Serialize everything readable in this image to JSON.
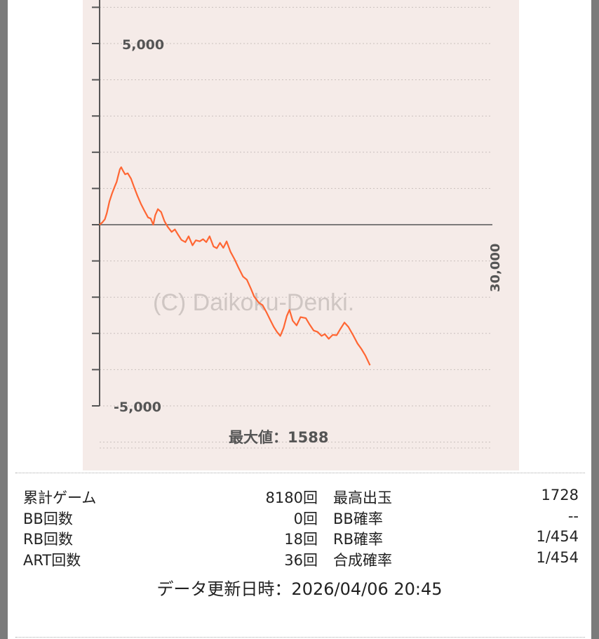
{
  "chart_data": {
    "type": "line",
    "y_tick_labels": [
      "5,000",
      "-5,000"
    ],
    "x_tick_label": "30,000",
    "watermark": "(C) Daikoku-Denki.",
    "max_label": "最大値：1588",
    "ylim": [
      -5000,
      6300
    ],
    "xlim": [
      0,
      30000
    ],
    "colors": {
      "line": "#ff6633",
      "background": "#f5ebe8",
      "axis": "#555555"
    },
    "series": [
      {
        "points": [
          [
            0,
            0
          ],
          [
            200,
            60
          ],
          [
            400,
            150
          ],
          [
            550,
            320
          ],
          [
            750,
            640
          ],
          [
            950,
            860
          ],
          [
            1150,
            1050
          ],
          [
            1300,
            1180
          ],
          [
            1420,
            1350
          ],
          [
            1550,
            1530
          ],
          [
            1650,
            1588
          ],
          [
            1800,
            1480
          ],
          [
            1950,
            1390
          ],
          [
            2150,
            1420
          ],
          [
            2400,
            1270
          ],
          [
            2650,
            1020
          ],
          [
            2900,
            790
          ],
          [
            3150,
            580
          ],
          [
            3400,
            400
          ],
          [
            3700,
            200
          ],
          [
            3900,
            170
          ],
          [
            4100,
            0
          ],
          [
            4250,
            260
          ],
          [
            4450,
            430
          ],
          [
            4700,
            350
          ],
          [
            4950,
            100
          ],
          [
            5200,
            -60
          ],
          [
            5500,
            -200
          ],
          [
            5750,
            -130
          ],
          [
            6000,
            -280
          ],
          [
            6250,
            -420
          ],
          [
            6550,
            -480
          ],
          [
            6800,
            -320
          ],
          [
            7100,
            -570
          ],
          [
            7350,
            -430
          ],
          [
            7650,
            -460
          ],
          [
            7900,
            -400
          ],
          [
            8150,
            -480
          ],
          [
            8400,
            -320
          ],
          [
            8700,
            -600
          ],
          [
            8950,
            -650
          ],
          [
            9200,
            -500
          ],
          [
            9450,
            -640
          ],
          [
            9700,
            -460
          ],
          [
            10000,
            -750
          ],
          [
            10300,
            -950
          ],
          [
            10600,
            -1180
          ],
          [
            10950,
            -1430
          ],
          [
            11250,
            -1520
          ],
          [
            11550,
            -1760
          ],
          [
            11800,
            -1980
          ],
          [
            12150,
            -2150
          ],
          [
            12450,
            -2220
          ],
          [
            12750,
            -2420
          ],
          [
            13050,
            -2640
          ],
          [
            13300,
            -2820
          ],
          [
            13550,
            -2960
          ],
          [
            13800,
            -3070
          ],
          [
            14050,
            -2850
          ],
          [
            14300,
            -2520
          ],
          [
            14500,
            -2350
          ],
          [
            14750,
            -2650
          ],
          [
            15050,
            -2780
          ],
          [
            15350,
            -2550
          ],
          [
            15750,
            -2580
          ],
          [
            16050,
            -2760
          ],
          [
            16350,
            -2920
          ],
          [
            16650,
            -2960
          ],
          [
            16950,
            -3070
          ],
          [
            17200,
            -3020
          ],
          [
            17500,
            -3150
          ],
          [
            17800,
            -3040
          ],
          [
            18100,
            -3050
          ],
          [
            18400,
            -2870
          ],
          [
            18700,
            -2700
          ],
          [
            19000,
            -2820
          ],
          [
            19350,
            -3040
          ],
          [
            19700,
            -3280
          ],
          [
            20000,
            -3430
          ],
          [
            20300,
            -3610
          ],
          [
            20650,
            -3880
          ]
        ]
      }
    ]
  },
  "stats": {
    "rows": [
      {
        "label1": "累計ゲーム",
        "value1": "8180回",
        "label2": "最高出玉",
        "value2": "1728"
      },
      {
        "label1": "BB回数",
        "value1": "0回",
        "label2": "BB確率",
        "value2": "--"
      },
      {
        "label1": "RB回数",
        "value1": "18回",
        "label2": "RB確率",
        "value2": "1/454"
      },
      {
        "label1": "ART回数",
        "value1": "36回",
        "label2": "合成確率",
        "value2": "1/454"
      }
    ]
  },
  "updated": "データ更新日時：2026/04/06 20:45"
}
